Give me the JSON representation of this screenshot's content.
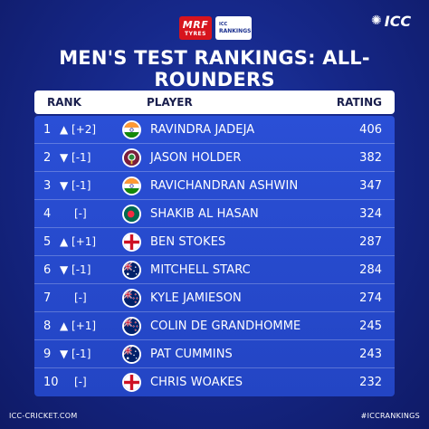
{
  "sponsor": {
    "mrf_top": "MRF",
    "mrf_bottom": "TYRES",
    "icc_small": "ICC",
    "rankings": "RANKINGS"
  },
  "logo": {
    "text": "ICC"
  },
  "title": "MEN'S TEST RANKINGS: ALL-ROUNDERS",
  "header": {
    "rank": "RANK",
    "player": "PLAYER",
    "rating": "RATING"
  },
  "rows": [
    {
      "pos": "1",
      "move": "▲ [+2]",
      "flag": "india",
      "name": "RAVINDRA JADEJA",
      "rating": "406"
    },
    {
      "pos": "2",
      "move": "▼ [-1]",
      "flag": "west-indies",
      "name": "JASON HOLDER",
      "rating": "382"
    },
    {
      "pos": "3",
      "move": "▼ [-1]",
      "flag": "india",
      "name": "RAVICHANDRAN ASHWIN",
      "rating": "347"
    },
    {
      "pos": "4",
      "move": "[-]",
      "flag": "bangladesh",
      "name": "SHAKIB AL HASAN",
      "rating": "324"
    },
    {
      "pos": "5",
      "move": "▲ [+1]",
      "flag": "england",
      "name": "BEN STOKES",
      "rating": "287"
    },
    {
      "pos": "6",
      "move": "▼ [-1]",
      "flag": "australia",
      "name": "MITCHELL STARC",
      "rating": "284"
    },
    {
      "pos": "7",
      "move": "[-]",
      "flag": "new-zealand",
      "name": "KYLE JAMIESON",
      "rating": "274"
    },
    {
      "pos": "8",
      "move": "▲ [+1]",
      "flag": "new-zealand",
      "name": "COLIN DE GRANDHOMME",
      "rating": "245"
    },
    {
      "pos": "9",
      "move": "▼ [-1]",
      "flag": "australia",
      "name": "PAT CUMMINS",
      "rating": "243"
    },
    {
      "pos": "10",
      "move": "[-]",
      "flag": "england",
      "name": "CHRIS WOAKES",
      "rating": "232"
    }
  ],
  "footer": {
    "left": "ICC-CRICKET.COM",
    "right": "#ICCRANKINGS"
  }
}
